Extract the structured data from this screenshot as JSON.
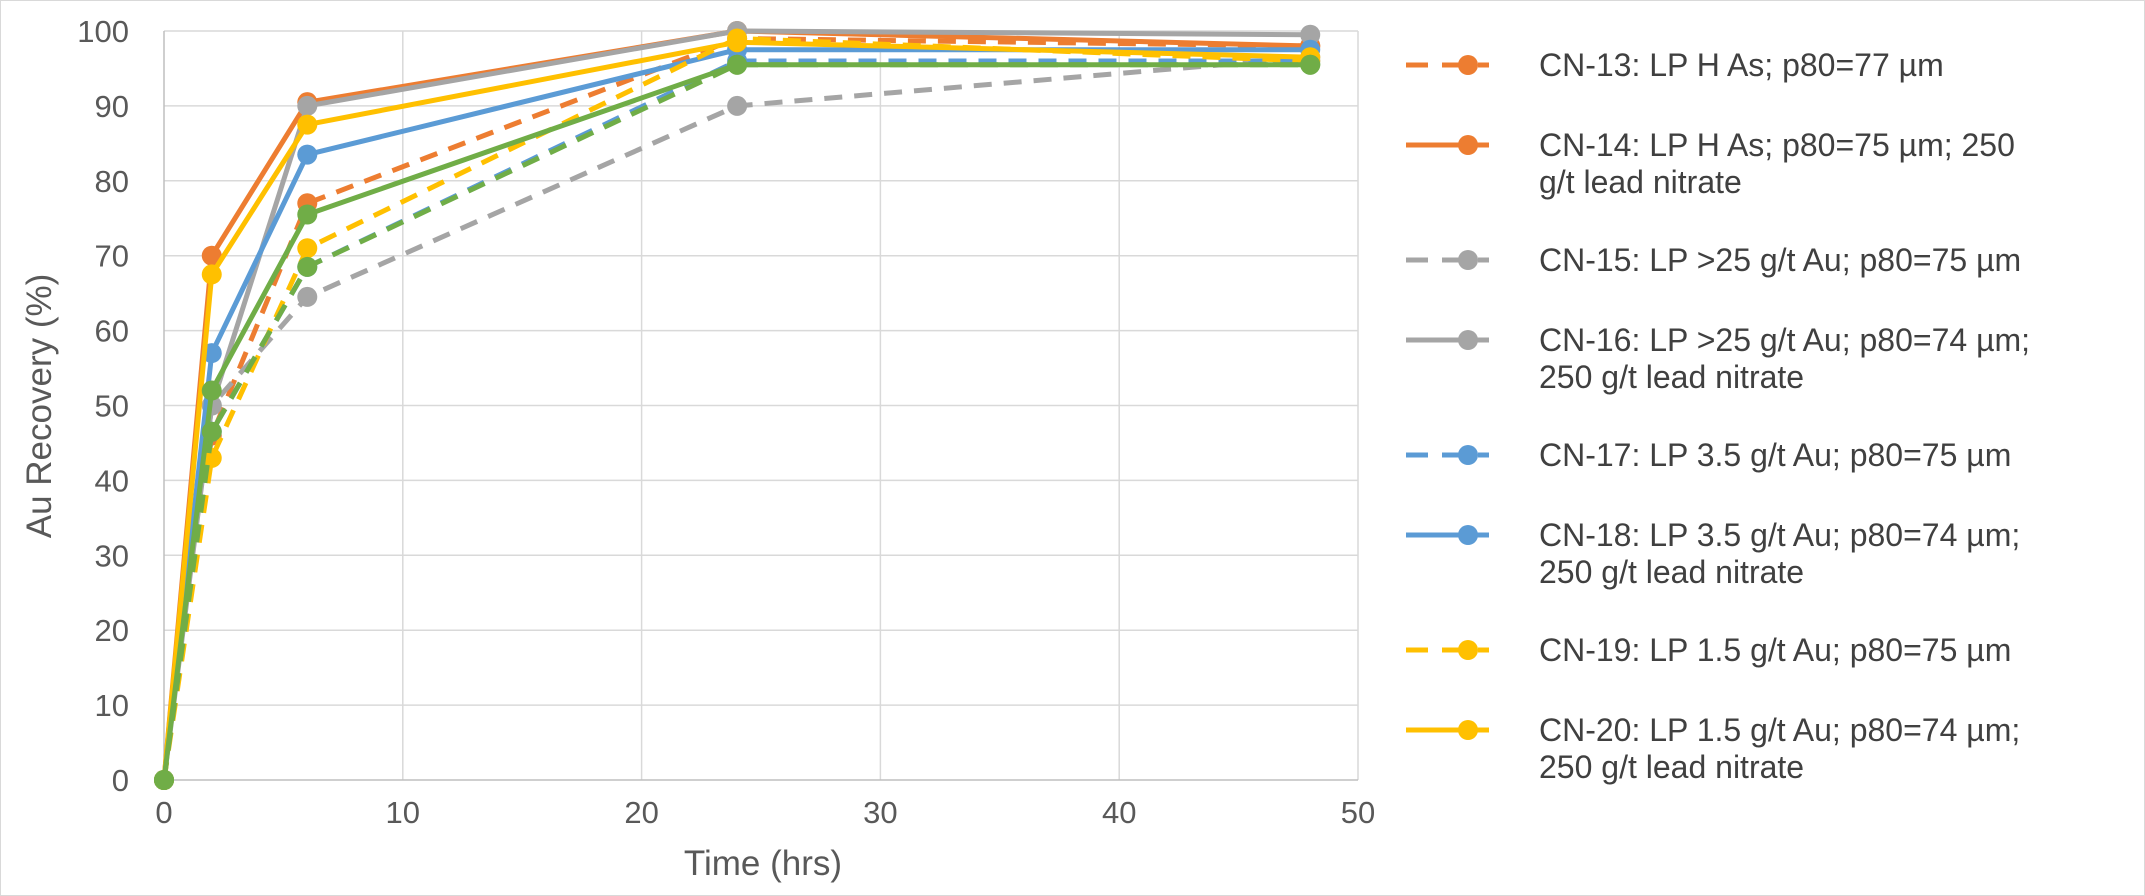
{
  "chart_data": {
    "type": "line",
    "title": "",
    "xlabel": "Time (hrs)",
    "ylabel": "Au Recovery (%)",
    "xlim": [
      0,
      50
    ],
    "ylim": [
      0,
      100
    ],
    "x_ticks": [
      "0",
      "10",
      "20",
      "30",
      "40",
      "50"
    ],
    "y_ticks": [
      "0",
      "10",
      "20",
      "30",
      "40",
      "50",
      "60",
      "70",
      "80",
      "90",
      "100"
    ],
    "grid": true,
    "legend_position": "right",
    "x": [
      0,
      2,
      6,
      24,
      48
    ],
    "series": [
      {
        "name": "CN-13: LP H As; p80=77 µm",
        "legend_lines": [
          "CN-13: LP H As; p80=77 µm"
        ],
        "color": "#ED7D31",
        "dash": true,
        "values": [
          0,
          46,
          77,
          99,
          98
        ]
      },
      {
        "name": "CN-14: LP H As; p80=75 µm; 250 g/t lead nitrate",
        "legend_lines": [
          "CN-14: LP H As; p80=75 µm; 250",
          "g/t lead nitrate"
        ],
        "color": "#ED7D31",
        "dash": false,
        "values": [
          0,
          70,
          90.5,
          100,
          98
        ]
      },
      {
        "name": "CN-15: LP >25 g/t Au; p80=75 µm",
        "legend_lines": [
          "CN-15: LP >25 g/t Au; p80=75 µm"
        ],
        "color": "#A5A5A5",
        "dash": true,
        "values": [
          0,
          50,
          64.5,
          90,
          96.5
        ]
      },
      {
        "name": "CN-16: LP >25 g/t Au; p80=74 µm; 250 g/t lead nitrate",
        "legend_lines": [
          "CN-16: LP >25 g/t Au; p80=74 µm;",
          "250 g/t lead nitrate"
        ],
        "color": "#A5A5A5",
        "dash": false,
        "values": [
          0,
          50,
          90,
          100,
          99.5
        ]
      },
      {
        "name": "CN-17: LP 3.5 g/t Au; p80=75 µm",
        "legend_lines": [
          "CN-17: LP 3.5 g/t Au; p80=75 µm"
        ],
        "color": "#5B9BD5",
        "dash": true,
        "values": [
          0,
          46.5,
          68.5,
          96,
          96
        ]
      },
      {
        "name": "CN-18: LP 3.5 g/t Au; p80=74 µm; 250 g/t lead nitrate",
        "legend_lines": [
          "CN-18: LP 3.5 g/t Au; p80=74 µm;",
          "250 g/t lead nitrate"
        ],
        "color": "#5B9BD5",
        "dash": false,
        "values": [
          0,
          57,
          83.5,
          97.5,
          97.5
        ]
      },
      {
        "name": "CN-19: LP 1.5 g/t Au;  p80=75 µm",
        "legend_lines": [
          "CN-19: LP 1.5 g/t Au;  p80=75 µm"
        ],
        "color": "#FFC000",
        "dash": true,
        "values": [
          0,
          43,
          71,
          99,
          96
        ]
      },
      {
        "name": "CN-20: LP 1.5 g/t Au; p80=74 µm; 250 g/t lead nitrate",
        "legend_lines": [
          "CN-20: LP 1.5 g/t Au; p80=74 µm;",
          "250 g/t lead nitrate"
        ],
        "color": "#FFC000",
        "dash": false,
        "values": [
          0,
          67.5,
          87.5,
          98.5,
          96.5
        ]
      },
      {
        "name": "",
        "legend_lines": [],
        "color": "#70AD47",
        "dash": true,
        "values": [
          0,
          46.5,
          68.5,
          95.5,
          95.5
        ]
      },
      {
        "name": "",
        "legend_lines": [],
        "color": "#70AD47",
        "dash": false,
        "values": [
          0,
          52,
          75.5,
          95.5,
          95.5
        ]
      }
    ]
  }
}
